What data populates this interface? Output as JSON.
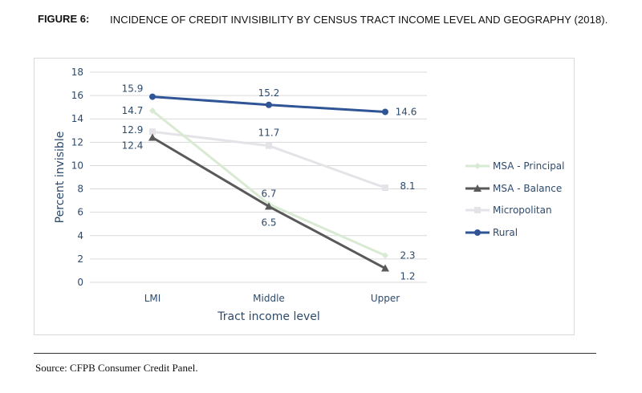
{
  "figure": {
    "label": "FIGURE 6:",
    "title": "INCIDENCE OF CREDIT INVISIBILITY BY CENSUS TRACT INCOME LEVEL AND GEOGRAPHY (2018).",
    "source": "Source: CFPB Consumer Credit Panel."
  },
  "chart_data": {
    "type": "line",
    "categories": [
      "LMI",
      "Middle",
      "Upper"
    ],
    "xlabel": "Tract income level",
    "ylabel": "Percent invisible",
    "ylim": [
      0,
      18
    ],
    "yticks": [
      0,
      2,
      4,
      6,
      8,
      10,
      12,
      14,
      16,
      18
    ],
    "grid": true,
    "legend_position": "right",
    "series": [
      {
        "name": "MSA - Principal",
        "values": [
          14.7,
          6.7,
          2.3
        ],
        "color": "#d9ead3",
        "marker": "diamond",
        "labels": [
          "14.7",
          "6.7",
          "2.3"
        ]
      },
      {
        "name": "MSA - Balance",
        "values": [
          12.4,
          6.5,
          1.2
        ],
        "color": "#595959",
        "marker": "triangle",
        "labels": [
          "12.4",
          "6.5",
          "1.2"
        ]
      },
      {
        "name": "Micropolitan",
        "values": [
          12.9,
          11.7,
          8.1
        ],
        "color": "#e4e4e8",
        "marker": "square",
        "labels": [
          "12.9",
          "11.7",
          "8.1"
        ]
      },
      {
        "name": "Rural",
        "values": [
          15.9,
          15.2,
          14.6
        ],
        "color": "#2f5597",
        "marker": "circle",
        "labels": [
          "15.9",
          "15.2",
          "14.6"
        ]
      }
    ],
    "label_color": "#2e4a6b",
    "axis_text_color": "#2e4a6b"
  }
}
